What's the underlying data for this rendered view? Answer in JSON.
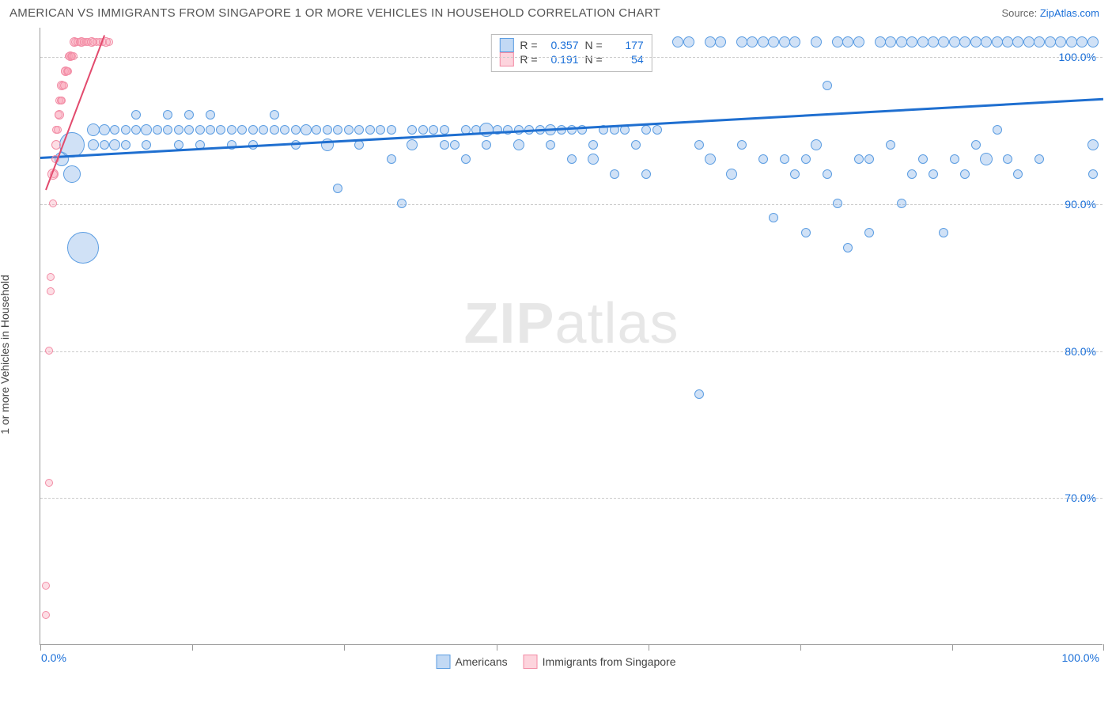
{
  "title": "AMERICAN VS IMMIGRANTS FROM SINGAPORE 1 OR MORE VEHICLES IN HOUSEHOLD CORRELATION CHART",
  "source_prefix": "Source: ",
  "source_link": "ZipAtlas.com",
  "ylabel": "1 or more Vehicles in Household",
  "watermark_bold": "ZIP",
  "watermark_rest": "atlas",
  "chart": {
    "type": "scatter",
    "xlim": [
      0,
      100
    ],
    "ylim": [
      60,
      102
    ],
    "x_ticks": [
      0,
      14.3,
      28.6,
      42.9,
      57.2,
      71.5,
      85.8,
      100
    ],
    "x_tick_labels": {
      "0": "0.0%",
      "100": "100.0%"
    },
    "y_ticks": [
      70,
      80,
      90,
      100
    ],
    "y_tick_labels": {
      "70": "70.0%",
      "80": "80.0%",
      "90": "90.0%",
      "100": "100.0%"
    },
    "grid_color": "#cccccc",
    "grid_dash": true,
    "background": "#ffffff",
    "series": [
      {
        "id": "americans",
        "label": "Americans",
        "color_fill": "rgba(120,170,230,0.35)",
        "color_stroke": "#5b9de2",
        "r_value": "0.357",
        "n_value": "177",
        "trend": {
          "x0": 0,
          "y0": 93.2,
          "x1": 100,
          "y1": 97.2,
          "color": "#1f6fd0",
          "width": 3
        },
        "points": [
          [
            2,
            93,
            18
          ],
          [
            3,
            94,
            32
          ],
          [
            3,
            92,
            22
          ],
          [
            4,
            87,
            40
          ],
          [
            5,
            94,
            14
          ],
          [
            5,
            95,
            16
          ],
          [
            6,
            94,
            12
          ],
          [
            6,
            95,
            14
          ],
          [
            7,
            95,
            12
          ],
          [
            7,
            94,
            14
          ],
          [
            8,
            95,
            12
          ],
          [
            8,
            94,
            12
          ],
          [
            9,
            95,
            12
          ],
          [
            9,
            96,
            12
          ],
          [
            10,
            95,
            14
          ],
          [
            10,
            94,
            12
          ],
          [
            11,
            95,
            12
          ],
          [
            12,
            95,
            12
          ],
          [
            12,
            96,
            12
          ],
          [
            13,
            95,
            12
          ],
          [
            13,
            94,
            12
          ],
          [
            14,
            95,
            12
          ],
          [
            14,
            96,
            12
          ],
          [
            15,
            95,
            12
          ],
          [
            15,
            94,
            12
          ],
          [
            16,
            95,
            12
          ],
          [
            16,
            96,
            12
          ],
          [
            17,
            95,
            12
          ],
          [
            18,
            95,
            12
          ],
          [
            18,
            94,
            12
          ],
          [
            19,
            95,
            12
          ],
          [
            20,
            95,
            12
          ],
          [
            20,
            94,
            12
          ],
          [
            21,
            95,
            12
          ],
          [
            22,
            95,
            12
          ],
          [
            22,
            96,
            12
          ],
          [
            23,
            95,
            12
          ],
          [
            24,
            95,
            12
          ],
          [
            24,
            94,
            12
          ],
          [
            25,
            95,
            14
          ],
          [
            26,
            95,
            12
          ],
          [
            27,
            95,
            12
          ],
          [
            27,
            94,
            16
          ],
          [
            28,
            95,
            12
          ],
          [
            28,
            91,
            12
          ],
          [
            29,
            95,
            12
          ],
          [
            30,
            95,
            12
          ],
          [
            30,
            94,
            12
          ],
          [
            31,
            95,
            12
          ],
          [
            32,
            95,
            12
          ],
          [
            33,
            95,
            12
          ],
          [
            33,
            93,
            12
          ],
          [
            34,
            90,
            12
          ],
          [
            35,
            95,
            12
          ],
          [
            35,
            94,
            14
          ],
          [
            36,
            95,
            12
          ],
          [
            37,
            95,
            12
          ],
          [
            38,
            95,
            12
          ],
          [
            38,
            94,
            12
          ],
          [
            39,
            94,
            12
          ],
          [
            40,
            95,
            12
          ],
          [
            40,
            93,
            12
          ],
          [
            41,
            95,
            12
          ],
          [
            42,
            95,
            18
          ],
          [
            42,
            94,
            12
          ],
          [
            43,
            95,
            12
          ],
          [
            44,
            95,
            12
          ],
          [
            45,
            95,
            12
          ],
          [
            45,
            94,
            14
          ],
          [
            46,
            95,
            12
          ],
          [
            47,
            95,
            12
          ],
          [
            48,
            95,
            14
          ],
          [
            48,
            94,
            12
          ],
          [
            49,
            95,
            12
          ],
          [
            50,
            95,
            12
          ],
          [
            50,
            93,
            12
          ],
          [
            51,
            95,
            12
          ],
          [
            52,
            94,
            12
          ],
          [
            52,
            93,
            14
          ],
          [
            53,
            95,
            12
          ],
          [
            54,
            95,
            12
          ],
          [
            54,
            92,
            12
          ],
          [
            55,
            95,
            12
          ],
          [
            56,
            94,
            12
          ],
          [
            57,
            95,
            12
          ],
          [
            57,
            92,
            12
          ],
          [
            58,
            95,
            12
          ],
          [
            60,
            101,
            14
          ],
          [
            61,
            101,
            14
          ],
          [
            62,
            94,
            12
          ],
          [
            62,
            77,
            12
          ],
          [
            63,
            101,
            14
          ],
          [
            63,
            93,
            14
          ],
          [
            64,
            101,
            14
          ],
          [
            65,
            92,
            14
          ],
          [
            66,
            101,
            14
          ],
          [
            66,
            94,
            12
          ],
          [
            67,
            101,
            14
          ],
          [
            68,
            101,
            14
          ],
          [
            68,
            93,
            12
          ],
          [
            69,
            101,
            14
          ],
          [
            69,
            89,
            12
          ],
          [
            70,
            101,
            14
          ],
          [
            70,
            93,
            12
          ],
          [
            71,
            101,
            14
          ],
          [
            71,
            92,
            12
          ],
          [
            72,
            93,
            12
          ],
          [
            72,
            88,
            12
          ],
          [
            73,
            101,
            14
          ],
          [
            73,
            94,
            14
          ],
          [
            74,
            92,
            12
          ],
          [
            74,
            98,
            12
          ],
          [
            75,
            101,
            14
          ],
          [
            75,
            90,
            12
          ],
          [
            76,
            101,
            14
          ],
          [
            76,
            87,
            12
          ],
          [
            77,
            101,
            14
          ],
          [
            77,
            93,
            12
          ],
          [
            78,
            93,
            12
          ],
          [
            78,
            88,
            12
          ],
          [
            79,
            101,
            14
          ],
          [
            80,
            101,
            14
          ],
          [
            80,
            94,
            12
          ],
          [
            81,
            101,
            14
          ],
          [
            81,
            90,
            12
          ],
          [
            82,
            101,
            14
          ],
          [
            82,
            92,
            12
          ],
          [
            83,
            101,
            14
          ],
          [
            83,
            93,
            12
          ],
          [
            84,
            101,
            14
          ],
          [
            84,
            92,
            12
          ],
          [
            85,
            101,
            14
          ],
          [
            85,
            88,
            12
          ],
          [
            86,
            101,
            14
          ],
          [
            86,
            93,
            12
          ],
          [
            87,
            101,
            14
          ],
          [
            87,
            92,
            12
          ],
          [
            88,
            101,
            14
          ],
          [
            88,
            94,
            12
          ],
          [
            89,
            101,
            14
          ],
          [
            89,
            93,
            16
          ],
          [
            90,
            101,
            14
          ],
          [
            90,
            95,
            12
          ],
          [
            91,
            101,
            14
          ],
          [
            91,
            93,
            12
          ],
          [
            92,
            101,
            14
          ],
          [
            92,
            92,
            12
          ],
          [
            93,
            101,
            14
          ],
          [
            94,
            101,
            14
          ],
          [
            94,
            93,
            12
          ],
          [
            95,
            101,
            14
          ],
          [
            96,
            101,
            14
          ],
          [
            97,
            101,
            14
          ],
          [
            98,
            101,
            14
          ],
          [
            99,
            101,
            14
          ],
          [
            99,
            94,
            14
          ],
          [
            99,
            92,
            12
          ]
        ]
      },
      {
        "id": "singapore",
        "label": "Immigrants from Singapore",
        "color_fill": "rgba(250,160,180,0.35)",
        "color_stroke": "#f28ca5",
        "r_value": "0.191",
        "n_value": "54",
        "trend": {
          "x0": 0.5,
          "y0": 91,
          "x1": 6,
          "y1": 101.5,
          "color": "#e24a6d",
          "width": 2
        },
        "points": [
          [
            0.5,
            62,
            10
          ],
          [
            0.5,
            64,
            10
          ],
          [
            0.8,
            71,
            10
          ],
          [
            0.8,
            80,
            10
          ],
          [
            1,
            85,
            10
          ],
          [
            1,
            84,
            10
          ],
          [
            1.2,
            90,
            10
          ],
          [
            1.2,
            92,
            14
          ],
          [
            1.3,
            92,
            10
          ],
          [
            1.4,
            93,
            10
          ],
          [
            1.5,
            94,
            12
          ],
          [
            1.5,
            95,
            10
          ],
          [
            1.6,
            95,
            10
          ],
          [
            1.7,
            96,
            10
          ],
          [
            1.8,
            96,
            12
          ],
          [
            1.8,
            97,
            10
          ],
          [
            1.9,
            97,
            10
          ],
          [
            2,
            97,
            10
          ],
          [
            2,
            98,
            12
          ],
          [
            2.1,
            98,
            10
          ],
          [
            2.2,
            98,
            10
          ],
          [
            2.3,
            99,
            10
          ],
          [
            2.4,
            99,
            12
          ],
          [
            2.5,
            99,
            10
          ],
          [
            2.6,
            99,
            10
          ],
          [
            2.7,
            100,
            10
          ],
          [
            2.8,
            100,
            12
          ],
          [
            2.9,
            100,
            10
          ],
          [
            3,
            100,
            10
          ],
          [
            3.1,
            100,
            10
          ],
          [
            3.2,
            101,
            12
          ],
          [
            3.3,
            101,
            10
          ],
          [
            3.5,
            101,
            10
          ],
          [
            3.7,
            101,
            10
          ],
          [
            3.9,
            101,
            12
          ],
          [
            4.1,
            101,
            10
          ],
          [
            4.3,
            101,
            10
          ],
          [
            4.5,
            101,
            10
          ],
          [
            4.8,
            101,
            12
          ],
          [
            5,
            101,
            10
          ],
          [
            5.3,
            101,
            10
          ],
          [
            5.6,
            101,
            10
          ],
          [
            5.9,
            101,
            10
          ],
          [
            6.2,
            101,
            12
          ],
          [
            6.5,
            101,
            10
          ]
        ]
      }
    ]
  },
  "legend_stats_label_r": "R =",
  "legend_stats_label_n": "N ="
}
